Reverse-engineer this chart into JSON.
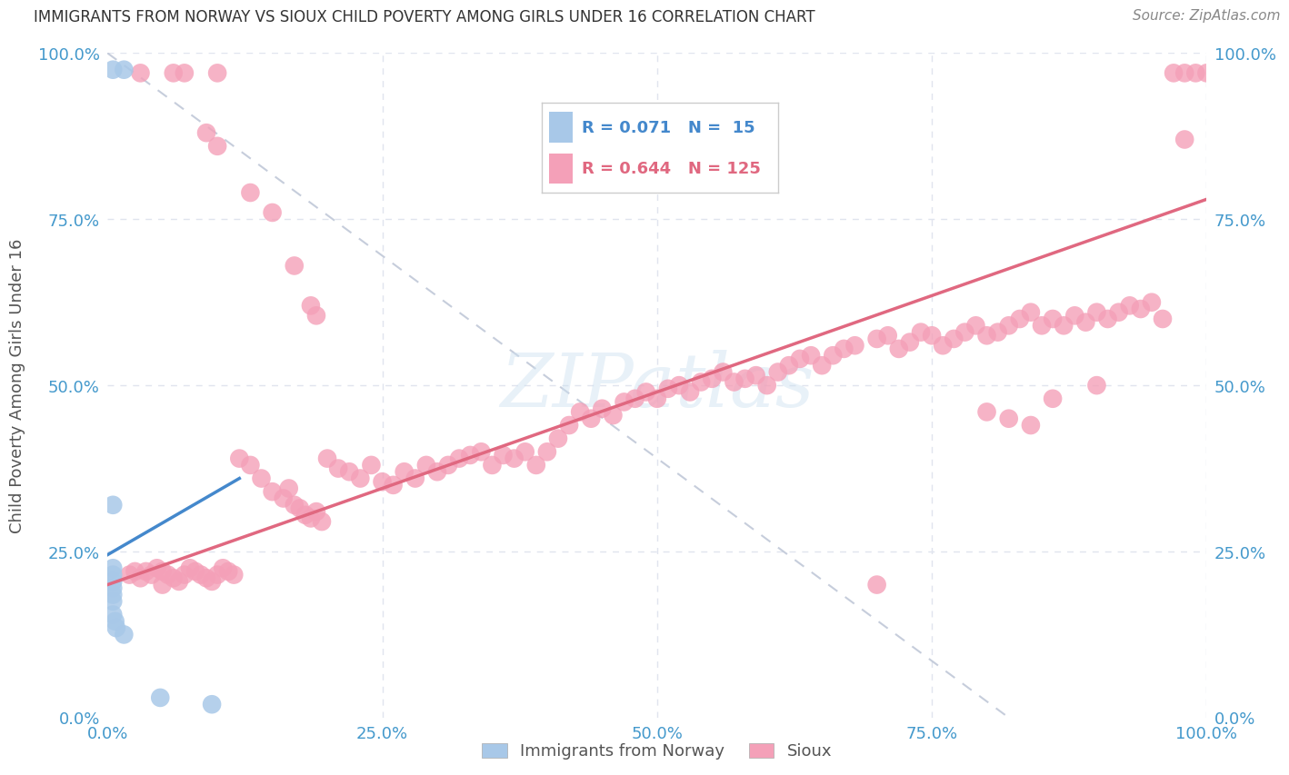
{
  "title": "IMMIGRANTS FROM NORWAY VS SIOUX CHILD POVERTY AMONG GIRLS UNDER 16 CORRELATION CHART",
  "source": "Source: ZipAtlas.com",
  "ylabel": "Child Poverty Among Girls Under 16",
  "xlim": [
    0,
    1.0
  ],
  "ylim": [
    0,
    1.0
  ],
  "xtick_vals": [
    0.0,
    0.25,
    0.5,
    0.75,
    1.0
  ],
  "xticklabels": [
    "0.0%",
    "25.0%",
    "50.0%",
    "75.0%",
    "100.0%"
  ],
  "ytick_vals": [
    0.0,
    0.25,
    0.5,
    0.75,
    1.0
  ],
  "yticklabels": [
    "0.0%",
    "25.0%",
    "50.0%",
    "75.0%",
    "100.0%"
  ],
  "watermark": "ZIPatlas",
  "norway_color": "#a8c8e8",
  "sioux_color": "#f4a0b8",
  "norway_line_color": "#4488cc",
  "sioux_line_color": "#e06880",
  "diag_line_color": "#c0c8d8",
  "norway_R": 0.071,
  "norway_N": 15,
  "sioux_R": 0.644,
  "sioux_N": 125,
  "norway_scatter": [
    [
      0.005,
      0.975
    ],
    [
      0.015,
      0.975
    ],
    [
      0.005,
      0.32
    ],
    [
      0.005,
      0.225
    ],
    [
      0.005,
      0.215
    ],
    [
      0.005,
      0.205
    ],
    [
      0.005,
      0.195
    ],
    [
      0.005,
      0.185
    ],
    [
      0.005,
      0.175
    ],
    [
      0.005,
      0.155
    ],
    [
      0.007,
      0.145
    ],
    [
      0.008,
      0.135
    ],
    [
      0.015,
      0.125
    ],
    [
      0.048,
      0.03
    ],
    [
      0.095,
      0.02
    ]
  ],
  "sioux_scatter": [
    [
      0.03,
      0.97
    ],
    [
      0.06,
      0.97
    ],
    [
      0.07,
      0.97
    ],
    [
      0.1,
      0.97
    ],
    [
      0.09,
      0.88
    ],
    [
      0.1,
      0.86
    ],
    [
      0.13,
      0.79
    ],
    [
      0.15,
      0.76
    ],
    [
      0.17,
      0.68
    ],
    [
      0.185,
      0.62
    ],
    [
      0.19,
      0.605
    ],
    [
      0.12,
      0.39
    ],
    [
      0.13,
      0.38
    ],
    [
      0.14,
      0.36
    ],
    [
      0.15,
      0.34
    ],
    [
      0.16,
      0.33
    ],
    [
      0.165,
      0.345
    ],
    [
      0.17,
      0.32
    ],
    [
      0.175,
      0.315
    ],
    [
      0.18,
      0.305
    ],
    [
      0.185,
      0.3
    ],
    [
      0.19,
      0.31
    ],
    [
      0.195,
      0.295
    ],
    [
      0.02,
      0.215
    ],
    [
      0.025,
      0.22
    ],
    [
      0.03,
      0.21
    ],
    [
      0.035,
      0.22
    ],
    [
      0.04,
      0.215
    ],
    [
      0.045,
      0.225
    ],
    [
      0.05,
      0.22
    ],
    [
      0.055,
      0.215
    ],
    [
      0.06,
      0.21
    ],
    [
      0.065,
      0.205
    ],
    [
      0.07,
      0.215
    ],
    [
      0.075,
      0.225
    ],
    [
      0.08,
      0.22
    ],
    [
      0.085,
      0.215
    ],
    [
      0.09,
      0.21
    ],
    [
      0.095,
      0.205
    ],
    [
      0.1,
      0.215
    ],
    [
      0.105,
      0.225
    ],
    [
      0.11,
      0.22
    ],
    [
      0.115,
      0.215
    ],
    [
      0.05,
      0.2
    ],
    [
      0.2,
      0.39
    ],
    [
      0.21,
      0.375
    ],
    [
      0.22,
      0.37
    ],
    [
      0.23,
      0.36
    ],
    [
      0.24,
      0.38
    ],
    [
      0.25,
      0.355
    ],
    [
      0.26,
      0.35
    ],
    [
      0.27,
      0.37
    ],
    [
      0.28,
      0.36
    ],
    [
      0.29,
      0.38
    ],
    [
      0.3,
      0.37
    ],
    [
      0.31,
      0.38
    ],
    [
      0.32,
      0.39
    ],
    [
      0.33,
      0.395
    ],
    [
      0.34,
      0.4
    ],
    [
      0.35,
      0.38
    ],
    [
      0.36,
      0.395
    ],
    [
      0.37,
      0.39
    ],
    [
      0.38,
      0.4
    ],
    [
      0.39,
      0.38
    ],
    [
      0.4,
      0.4
    ],
    [
      0.41,
      0.42
    ],
    [
      0.42,
      0.44
    ],
    [
      0.43,
      0.46
    ],
    [
      0.44,
      0.45
    ],
    [
      0.45,
      0.465
    ],
    [
      0.46,
      0.455
    ],
    [
      0.47,
      0.475
    ],
    [
      0.48,
      0.48
    ],
    [
      0.49,
      0.49
    ],
    [
      0.5,
      0.48
    ],
    [
      0.51,
      0.495
    ],
    [
      0.52,
      0.5
    ],
    [
      0.53,
      0.49
    ],
    [
      0.54,
      0.505
    ],
    [
      0.55,
      0.51
    ],
    [
      0.56,
      0.52
    ],
    [
      0.57,
      0.505
    ],
    [
      0.58,
      0.51
    ],
    [
      0.59,
      0.515
    ],
    [
      0.6,
      0.5
    ],
    [
      0.61,
      0.52
    ],
    [
      0.62,
      0.53
    ],
    [
      0.63,
      0.54
    ],
    [
      0.64,
      0.545
    ],
    [
      0.65,
      0.53
    ],
    [
      0.66,
      0.545
    ],
    [
      0.67,
      0.555
    ],
    [
      0.68,
      0.56
    ],
    [
      0.7,
      0.57
    ],
    [
      0.71,
      0.575
    ],
    [
      0.72,
      0.555
    ],
    [
      0.73,
      0.565
    ],
    [
      0.74,
      0.58
    ],
    [
      0.75,
      0.575
    ],
    [
      0.76,
      0.56
    ],
    [
      0.77,
      0.57
    ],
    [
      0.78,
      0.58
    ],
    [
      0.79,
      0.59
    ],
    [
      0.8,
      0.575
    ],
    [
      0.81,
      0.58
    ],
    [
      0.82,
      0.59
    ],
    [
      0.83,
      0.6
    ],
    [
      0.84,
      0.61
    ],
    [
      0.85,
      0.59
    ],
    [
      0.86,
      0.6
    ],
    [
      0.87,
      0.59
    ],
    [
      0.88,
      0.605
    ],
    [
      0.89,
      0.595
    ],
    [
      0.9,
      0.61
    ],
    [
      0.91,
      0.6
    ],
    [
      0.92,
      0.61
    ],
    [
      0.93,
      0.62
    ],
    [
      0.94,
      0.615
    ],
    [
      0.95,
      0.625
    ],
    [
      0.96,
      0.6
    ],
    [
      0.97,
      0.97
    ],
    [
      0.98,
      0.97
    ],
    [
      0.99,
      0.97
    ],
    [
      1.0,
      0.97
    ],
    [
      0.98,
      0.87
    ],
    [
      0.7,
      0.2
    ],
    [
      0.8,
      0.46
    ],
    [
      0.82,
      0.45
    ],
    [
      0.84,
      0.44
    ],
    [
      0.86,
      0.48
    ],
    [
      0.9,
      0.5
    ]
  ],
  "norway_line_x": [
    0.0,
    0.12
  ],
  "norway_line_y": [
    0.245,
    0.36
  ],
  "sioux_line_x": [
    0.0,
    1.0
  ],
  "sioux_line_y": [
    0.2,
    0.78
  ],
  "diag_line_x": [
    0.0,
    0.82
  ],
  "diag_line_y": [
    1.0,
    0.0
  ],
  "background_color": "#ffffff",
  "grid_color": "#e0e4ee",
  "title_color": "#333333",
  "axis_label_color": "#555555",
  "tick_color": "#4499cc",
  "tick_fontsize": 13,
  "title_fontsize": 12,
  "ylabel_fontsize": 13
}
